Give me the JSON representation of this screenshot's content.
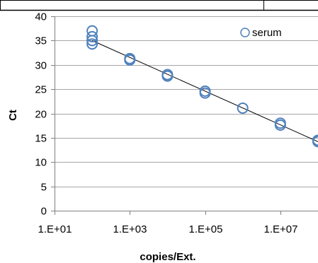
{
  "chart_data": {
    "type": "scatter",
    "title": "",
    "xlabel": "copies/Ext.",
    "ylabel": "Ct",
    "x_scale": "log",
    "xlim": [
      10,
      100000000
    ],
    "ylim": [
      0,
      40
    ],
    "x_tick_values": [
      10,
      1000,
      100000,
      10000000
    ],
    "x_tick_labels": [
      "1.E+01",
      "1.E+03",
      "1.E+05",
      "1.E+07"
    ],
    "y_ticks": [
      0,
      5,
      10,
      15,
      20,
      25,
      30,
      35,
      40
    ],
    "grid": "horizontal",
    "legend_position": "top-right",
    "series": [
      {
        "name": "serum",
        "marker": "open-circle",
        "color": "#4f81bd",
        "points": [
          {
            "x": 100,
            "y": 37.0
          },
          {
            "x": 100,
            "y": 35.8
          },
          {
            "x": 100,
            "y": 35.0
          },
          {
            "x": 100,
            "y": 34.3
          },
          {
            "x": 1000,
            "y": 31.3
          },
          {
            "x": 1000,
            "y": 31.0
          },
          {
            "x": 10000,
            "y": 28.0
          },
          {
            "x": 10000,
            "y": 27.7
          },
          {
            "x": 100000,
            "y": 24.6
          },
          {
            "x": 100000,
            "y": 24.2
          },
          {
            "x": 1000000,
            "y": 21.1
          },
          {
            "x": 10000000,
            "y": 18.0
          },
          {
            "x": 10000000,
            "y": 17.6
          },
          {
            "x": 100000000,
            "y": 14.5
          },
          {
            "x": 100000000,
            "y": 14.2
          }
        ]
      }
    ],
    "trendline": {
      "type": "linear-log",
      "color": "#000000",
      "start": {
        "x": 100,
        "y": 35.0
      },
      "end": {
        "x": 100000000,
        "y": 14.2
      }
    }
  }
}
